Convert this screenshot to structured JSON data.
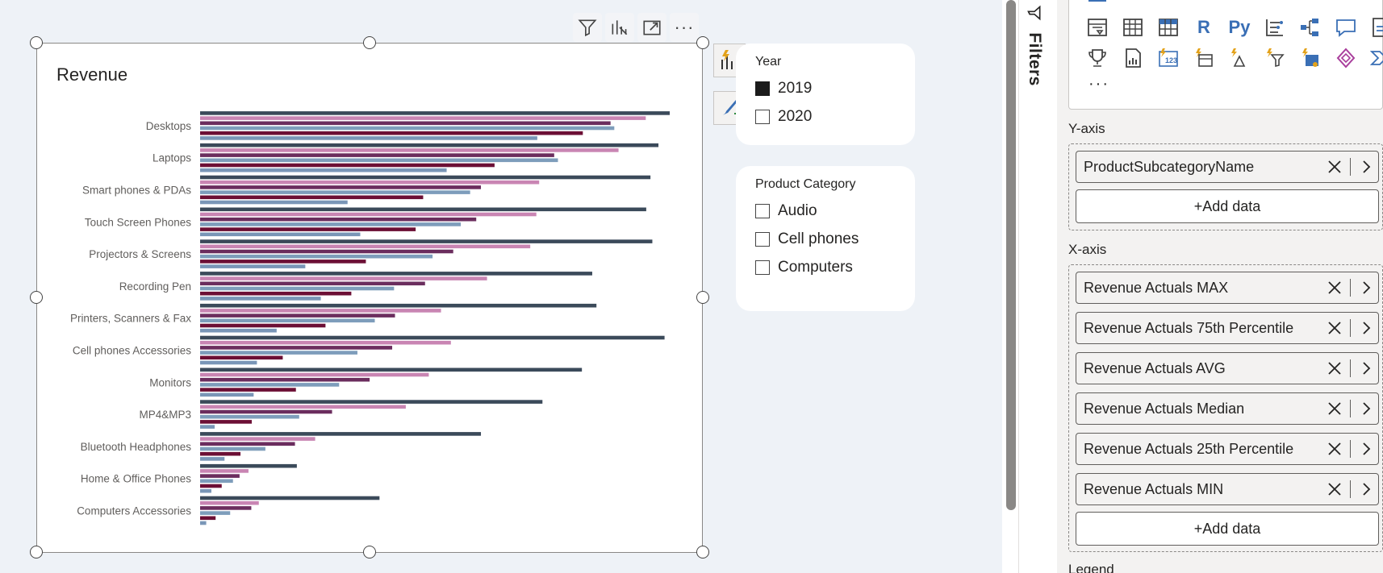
{
  "chart_data": {
    "type": "bar",
    "orientation": "horizontal",
    "title": "Revenue",
    "categories": [
      "Desktops",
      "Laptops",
      "Smart phones & PDAs",
      "Touch Screen Phones",
      "Projectors & Screens",
      "Recording Pen",
      "Printers, Scanners & Fax",
      "Cell phones Accessories",
      "Monitors",
      "MP4&MP3",
      "Bluetooth Headphones",
      "Home & Office Phones",
      "Computers Accessories"
    ],
    "series": [
      {
        "name": "Revenue Actuals MAX",
        "color": "#3b4a5a",
        "values": [
          100,
          97.6,
          95.9,
          95,
          96.3,
          83.5,
          84.4,
          98.9,
          81.3,
          72.9,
          59.8,
          20.6,
          38.2
        ]
      },
      {
        "name": "Revenue Actuals 75th Percentile",
        "color": "#c985b3",
        "values": [
          94.9,
          89.1,
          72.2,
          71.6,
          70.3,
          61.1,
          51.3,
          53.4,
          48.7,
          43.8,
          24.5,
          10.3,
          12.5
        ]
      },
      {
        "name": "Revenue Actuals AVG",
        "color": "#6b2d5e",
        "values": [
          87.4,
          75.4,
          59.8,
          58.8,
          53.9,
          47.9,
          41.5,
          40.9,
          36.1,
          28.1,
          20.2,
          8.4,
          10.9
        ]
      },
      {
        "name": "Revenue Actuals Median",
        "color": "#7e9dbb",
        "values": [
          88.2,
          76.2,
          57.5,
          55.5,
          49.5,
          41.3,
          37.2,
          33.5,
          29.6,
          21.1,
          13.9,
          7.0,
          6.4
        ]
      },
      {
        "name": "Revenue Actuals 25th Percentile",
        "color": "#6c0f35",
        "values": [
          81.5,
          62.7,
          47.5,
          45.9,
          35.3,
          32.2,
          26.7,
          17.6,
          20.4,
          11.0,
          8.6,
          4.6,
          3.3
        ]
      },
      {
        "name": "Revenue Actuals MIN",
        "color": "#7a96b7",
        "values": [
          71.8,
          52.5,
          31.4,
          34.1,
          22.4,
          25.7,
          16.3,
          12.1,
          11.4,
          3.1,
          5.2,
          2.4,
          1.3
        ]
      }
    ],
    "xlim": [
      0,
      100
    ],
    "legend": "none",
    "grid": false
  },
  "visual_toolbar": {
    "filter": "filter-icon",
    "drill": "drill-icon",
    "focus": "focus-mode-icon",
    "more": "···"
  },
  "year_slicer": {
    "title": "Year",
    "items": [
      {
        "label": "2019",
        "checked": true
      },
      {
        "label": "2020",
        "checked": false
      }
    ]
  },
  "category_slicer": {
    "title": "Product Category",
    "items": [
      {
        "label": "Audio",
        "checked": false
      },
      {
        "label": "Cell phones",
        "checked": false
      },
      {
        "label": "Computers",
        "checked": false
      }
    ]
  },
  "filters_pane": {
    "label": "Filters"
  },
  "viz_pane": {
    "gallery": {
      "r_label": "R",
      "py_label": "Py",
      "more": "···"
    },
    "y_axis": {
      "label": "Y-axis",
      "fields": [
        "ProductSubcategoryName"
      ],
      "add_label": "+Add data"
    },
    "x_axis": {
      "label": "X-axis",
      "fields": [
        "Revenue Actuals MAX",
        "Revenue Actuals 75th Percentile",
        "Revenue Actuals AVG",
        "Revenue Actuals Median",
        "Revenue Actuals 25th Percentile",
        "Revenue Actuals MIN"
      ],
      "add_label": "+Add data"
    },
    "legend": {
      "label": "Legend"
    }
  }
}
